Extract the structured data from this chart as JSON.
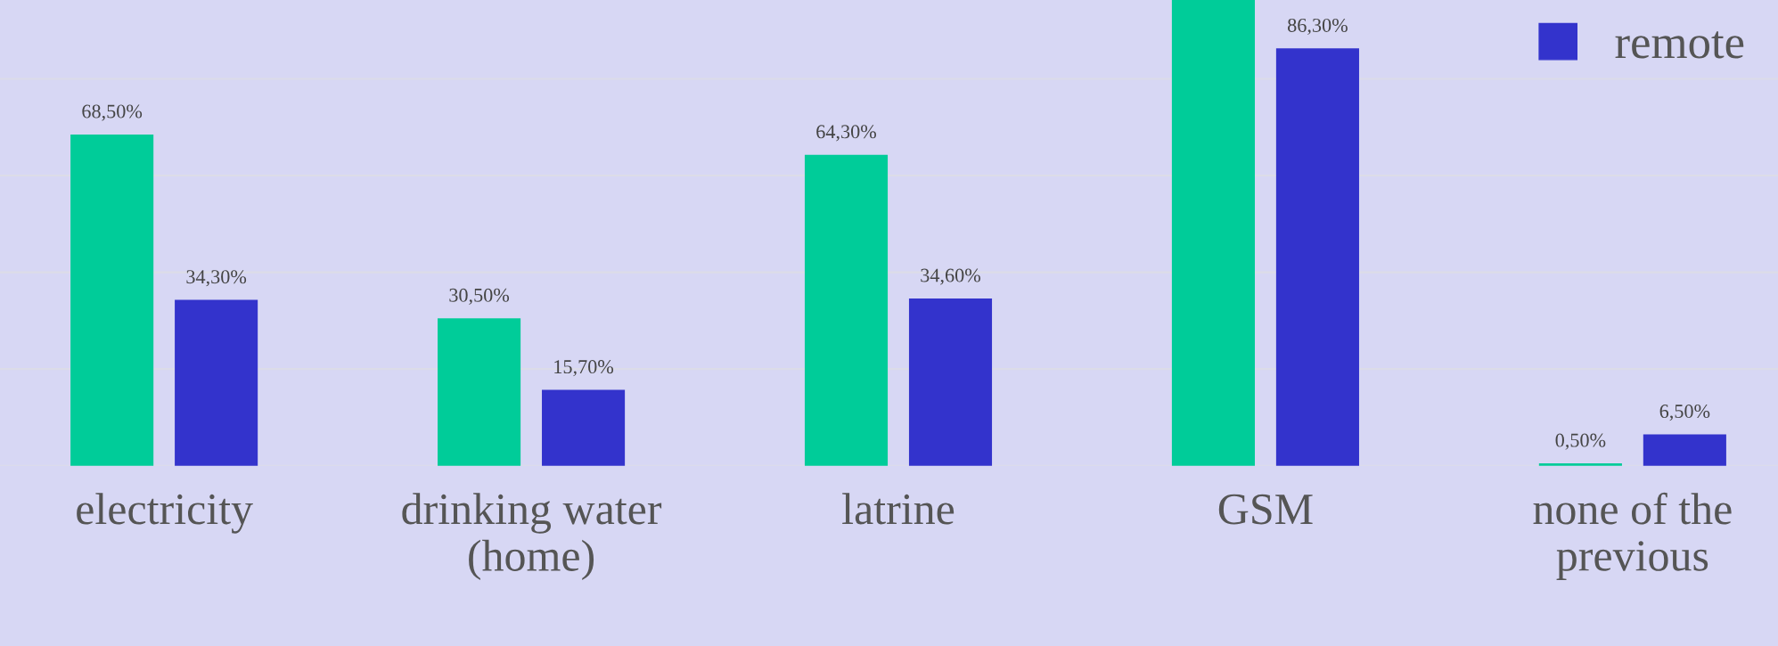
{
  "chart_data": {
    "type": "bar",
    "categories": [
      "electricity",
      "drinking water\n(home)",
      "latrine",
      "GSM",
      "none of the\nprevious"
    ],
    "series": [
      {
        "color": "#00cc99",
        "values": [
          68.5,
          30.5,
          64.3,
          96.3,
          0.5
        ],
        "value_labels": [
          "68,50%",
          "30,50%",
          "64,30%",
          null,
          "0,50%"
        ]
      },
      {
        "name": "remote",
        "color": "#3333cc",
        "values": [
          34.3,
          15.7,
          34.6,
          86.3,
          6.5
        ],
        "value_labels": [
          "34,30%",
          "15,70%",
          "34,60%",
          "86,30%",
          "6,50%"
        ]
      }
    ],
    "ylim": [
      0,
      96.3
    ],
    "yticks": [
      {
        "value": 0,
        "label": null
      },
      {
        "value": 20,
        "label": null
      },
      {
        "value": 40,
        "label": null
      },
      {
        "value": 60,
        "label": null
      },
      {
        "value": 80,
        "label": null
      }
    ],
    "tick_labels": "x",
    "grid": "y",
    "legend": "top right"
  }
}
